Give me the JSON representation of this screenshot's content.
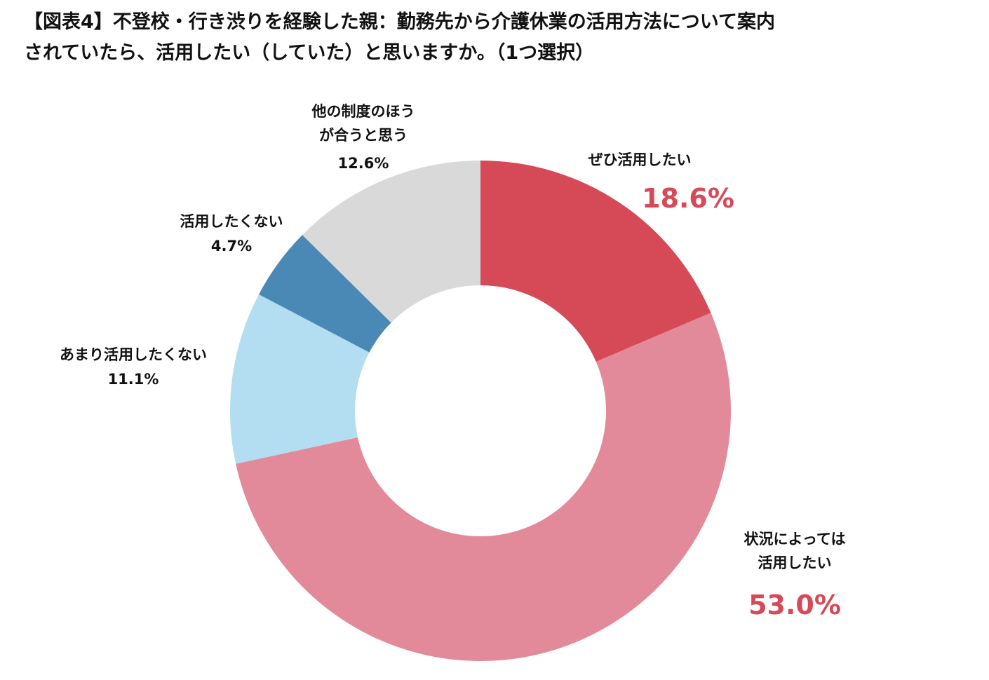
{
  "title": {
    "line1": "【図表4】不登校・行き渋りを経験した親：勤務先から介護休業の活用方法について案内",
    "line2": "されていたら、活用したい（していた）と思いますか。（1つ選択）"
  },
  "chart_data": {
    "type": "pie",
    "variant": "donut",
    "start_angle": "12 o'clock",
    "direction": "clockwise",
    "slices": [
      {
        "key": "zehi",
        "label_lines": [
          "ぜひ活用したい"
        ],
        "value": 18.6,
        "value_text": "18.6%",
        "color": "#d64957",
        "label_color": "#d64957",
        "emphasis": true
      },
      {
        "key": "joukyou",
        "label_lines": [
          "状況によっては",
          "活用したい"
        ],
        "value": 53.0,
        "value_text": "53.0%",
        "color": "#e38a9a",
        "label_color": "#d64957",
        "emphasis": true
      },
      {
        "key": "amari",
        "label_lines": [
          "あまり活用したくない"
        ],
        "value": 11.1,
        "value_text": "11.1%",
        "color": "#b3ddf0",
        "label_color": "#111111",
        "emphasis": false
      },
      {
        "key": "shitakunai",
        "label_lines": [
          "活用したくない"
        ],
        "value": 4.7,
        "value_text": "4.7%",
        "color": "#4a89b6",
        "label_color": "#111111",
        "emphasis": false
      },
      {
        "key": "hoka",
        "label_lines": [
          "他の制度のほう",
          "が合うと思う"
        ],
        "value": 12.6,
        "value_text": "12.6%",
        "color": "#d9d9d9",
        "label_color": "#111111",
        "emphasis": false
      }
    ]
  }
}
